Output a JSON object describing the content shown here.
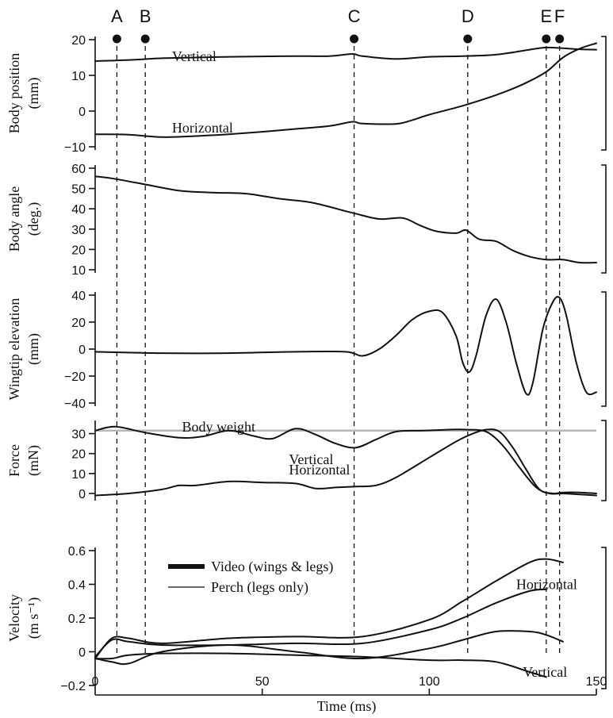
{
  "events": [
    {
      "label": "A",
      "t": 6.5
    },
    {
      "label": "B",
      "t": 15
    },
    {
      "label": "C",
      "t": 77.5
    },
    {
      "label": "D",
      "t": 111.5
    },
    {
      "label": "E",
      "t": 135
    },
    {
      "label": "F",
      "t": 139
    }
  ],
  "xaxis": {
    "label": "Time (ms)",
    "ticks": [
      0,
      50,
      100,
      150
    ],
    "range": [
      0,
      150
    ]
  },
  "chart_data": [
    {
      "type": "line",
      "ylabel": [
        "Body position",
        "(mm)"
      ],
      "ylim": [
        -10,
        20
      ],
      "yticks": [
        20,
        10,
        0,
        -10
      ],
      "series": [
        {
          "name": "Vertical",
          "x": [
            0,
            10,
            20,
            30,
            40,
            50,
            60,
            70,
            77,
            80,
            90,
            100,
            110,
            120,
            130,
            135,
            140,
            145,
            150
          ],
          "y": [
            14,
            14.3,
            14.8,
            15,
            15.2,
            15.3,
            15.4,
            15.4,
            16,
            15.4,
            14.6,
            15.2,
            15.4,
            15.8,
            17.2,
            17.8,
            17.6,
            17.3,
            17.2
          ]
        },
        {
          "name": "Horizontal",
          "x": [
            0,
            10,
            20,
            30,
            40,
            50,
            60,
            70,
            77,
            80,
            90,
            95,
            100,
            110,
            120,
            128,
            135,
            140,
            145,
            150
          ],
          "y": [
            -6.5,
            -6.6,
            -7.3,
            -7,
            -6.5,
            -5.8,
            -5,
            -4.2,
            -3,
            -3.5,
            -3.6,
            -2.5,
            -1,
            1.5,
            4.5,
            7.5,
            11,
            15,
            17.5,
            19
          ]
        }
      ],
      "annotations": [
        {
          "text": "Vertical",
          "x": 23,
          "y": 15.3
        },
        {
          "text": "Horizontal",
          "x": 23,
          "y": -4.7
        }
      ]
    },
    {
      "type": "line",
      "ylabel": [
        "Body angle",
        "(deg.)"
      ],
      "ylim": [
        10,
        60
      ],
      "yticks": [
        60,
        50,
        40,
        30,
        20,
        10
      ],
      "series": [
        {
          "name": "",
          "x": [
            0,
            5,
            15,
            25,
            35,
            45,
            55,
            65,
            77,
            85,
            92,
            97,
            102,
            108,
            111,
            115,
            120,
            125,
            130,
            135,
            140,
            145,
            150
          ],
          "y": [
            56,
            55,
            52,
            49,
            48,
            47.5,
            45,
            43,
            38,
            35,
            35.5,
            32,
            29,
            28,
            29.5,
            25,
            24,
            19.5,
            16.5,
            15,
            15,
            13.5,
            13.5
          ]
        }
      ]
    },
    {
      "type": "line",
      "ylabel": [
        "Wingtip elevation",
        "(mm)"
      ],
      "ylim": [
        -40,
        40
      ],
      "yticks": [
        40,
        20,
        0,
        -20,
        -40
      ],
      "series": [
        {
          "name": "",
          "x": [
            0,
            20,
            40,
            60,
            75,
            80,
            85,
            90,
            95,
            100,
            104,
            108,
            110,
            112,
            114,
            117,
            120,
            123,
            126,
            129,
            131,
            134,
            137,
            139,
            141,
            144,
            147,
            150
          ],
          "y": [
            -2,
            -3,
            -3,
            -2,
            -2,
            -5,
            0,
            10,
            22,
            28,
            27,
            10,
            -10,
            -17,
            -5,
            25,
            37,
            20,
            -10,
            -33,
            -25,
            15,
            35,
            38,
            25,
            -10,
            -32,
            -32
          ]
        }
      ]
    },
    {
      "type": "line",
      "ylabel": [
        "Force",
        "(mN)"
      ],
      "ylim": [
        -2,
        35
      ],
      "yticks": [
        30,
        20,
        10,
        0
      ],
      "reference": {
        "label": "Body weight",
        "y": 31.5,
        "color": "#b7b7b7"
      },
      "series": [
        {
          "name": "Vertical",
          "x": [
            0,
            6,
            15,
            25,
            32,
            40,
            47,
            53,
            60,
            66,
            72,
            78,
            84,
            90,
            98,
            106,
            111,
            117,
            122,
            127,
            132,
            136,
            140,
            145,
            150
          ],
          "y": [
            31.5,
            33.5,
            30.5,
            28,
            28.5,
            31.5,
            29,
            27.5,
            32.5,
            29.5,
            25,
            23,
            27,
            31,
            31.5,
            32,
            32,
            31,
            24,
            13,
            3,
            0,
            0,
            -0.5,
            -1
          ]
        },
        {
          "name": "Horizontal",
          "x": [
            0,
            10,
            20,
            25,
            30,
            40,
            50,
            60,
            66,
            72,
            78,
            84,
            90,
            100,
            108,
            113,
            117,
            121,
            125,
            129,
            133,
            137,
            140,
            145,
            150
          ],
          "y": [
            -1,
            0,
            2,
            4,
            4,
            6,
            5.5,
            5,
            2.5,
            3,
            3.5,
            4,
            8,
            18,
            26,
            30,
            32,
            31,
            23,
            12,
            2,
            0,
            0.5,
            0.5,
            0
          ]
        }
      ],
      "annotations": [
        {
          "text": "Body weight",
          "x": 26,
          "y": 33.5
        },
        {
          "text": "Vertical",
          "x": 58,
          "y": 17
        },
        {
          "text": "Horizontal",
          "x": 58,
          "y": 12
        }
      ]
    },
    {
      "type": "line",
      "ylabel": [
        "Velocity",
        "(m s⁻¹)"
      ],
      "ylim": [
        -0.2,
        0.6
      ],
      "yticks": [
        0.6,
        0.4,
        0.2,
        0,
        -0.2
      ],
      "series": [
        {
          "name": "Video (wings & legs)",
          "lineWidth": 6,
          "x": [
            0,
            5,
            10,
            20,
            40,
            60,
            80,
            100,
            110,
            120,
            130,
            135,
            140
          ],
          "y": [
            -0.04,
            0.08,
            0.08,
            0.05,
            0.08,
            0.09,
            0.09,
            0.19,
            0.3,
            0.42,
            0.53,
            0.55,
            0.53
          ]
        },
        {
          "name": "",
          "lineWidth": 6,
          "x": [
            0,
            5,
            10,
            20,
            40,
            60,
            80,
            100,
            110,
            120,
            130,
            135,
            140
          ],
          "y": [
            -0.04,
            -0.06,
            -0.07,
            0.0,
            0.04,
            0.0,
            -0.04,
            0.02,
            0.07,
            0.12,
            0.12,
            0.1,
            0.06
          ]
        },
        {
          "name": "Perch (legs only)",
          "lineWidth": 1.2,
          "x": [
            0,
            5,
            10,
            20,
            40,
            60,
            80,
            100,
            110,
            120,
            130,
            135
          ],
          "y": [
            -0.03,
            0.07,
            0.06,
            0.04,
            0.04,
            0.05,
            0.05,
            0.13,
            0.2,
            0.29,
            0.36,
            0.37
          ]
        },
        {
          "name": "",
          "lineWidth": 1.2,
          "x": [
            0,
            5,
            10,
            20,
            40,
            60,
            80,
            100,
            110,
            120,
            130,
            135
          ],
          "y": [
            -0.04,
            -0.04,
            -0.02,
            -0.01,
            -0.01,
            -0.02,
            -0.03,
            -0.05,
            -0.05,
            -0.06,
            -0.12,
            -0.15
          ]
        }
      ],
      "legend": [
        {
          "text": "Video (wings & legs)",
          "lineWidth": 6
        },
        {
          "text": "Perch (legs only)",
          "lineWidth": 1.2
        }
      ],
      "annotations": [
        {
          "text": "Horizontal",
          "x": 126,
          "y": 0.4
        },
        {
          "text": "Vertical",
          "x": 128,
          "y": -0.12
        }
      ]
    }
  ]
}
